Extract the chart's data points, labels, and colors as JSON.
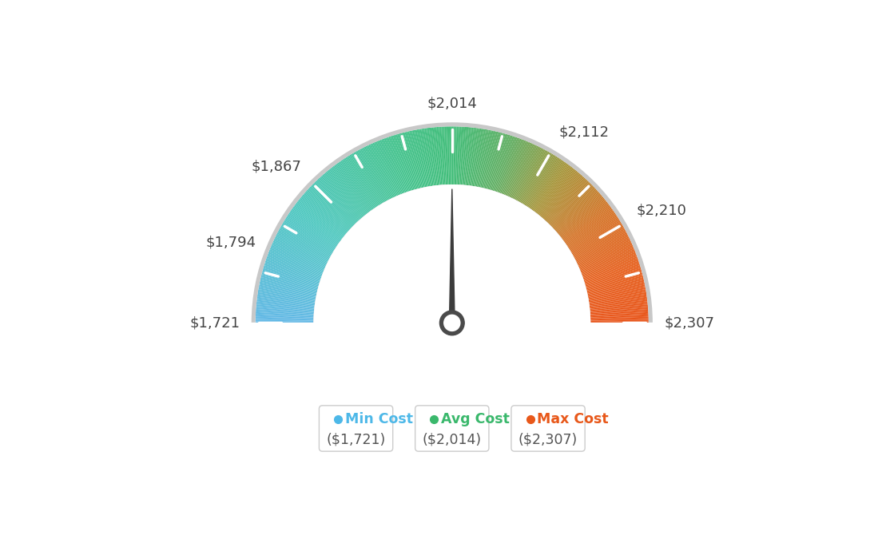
{
  "min_val": 1721,
  "avg_val": 2014,
  "max_val": 2307,
  "tick_labels": [
    "$1,721",
    "$1,794",
    "$1,867",
    "$2,014",
    "$2,112",
    "$2,210",
    "$2,307"
  ],
  "tick_values": [
    1721,
    1794,
    1867,
    2014,
    2112,
    2210,
    2307
  ],
  "legend": [
    {
      "label": "Min Cost",
      "value": "($1,721)",
      "color": "#4db8e8"
    },
    {
      "label": "Avg Cost",
      "value": "($2,014)",
      "color": "#3ab86c"
    },
    {
      "label": "Max Cost",
      "value": "($2,307)",
      "color": "#e8581a"
    }
  ],
  "background_color": "#ffffff",
  "colors_gradient": [
    [
      0.0,
      [
        0.38,
        0.72,
        0.9
      ]
    ],
    [
      0.2,
      [
        0.3,
        0.78,
        0.75
      ]
    ],
    [
      0.4,
      [
        0.26,
        0.76,
        0.55
      ]
    ],
    [
      0.5,
      [
        0.25,
        0.74,
        0.47
      ]
    ],
    [
      0.6,
      [
        0.38,
        0.68,
        0.38
      ]
    ],
    [
      0.7,
      [
        0.65,
        0.58,
        0.22
      ]
    ],
    [
      0.8,
      [
        0.83,
        0.45,
        0.15
      ]
    ],
    [
      0.9,
      [
        0.9,
        0.38,
        0.12
      ]
    ],
    [
      1.0,
      [
        0.91,
        0.33,
        0.1
      ]
    ]
  ]
}
